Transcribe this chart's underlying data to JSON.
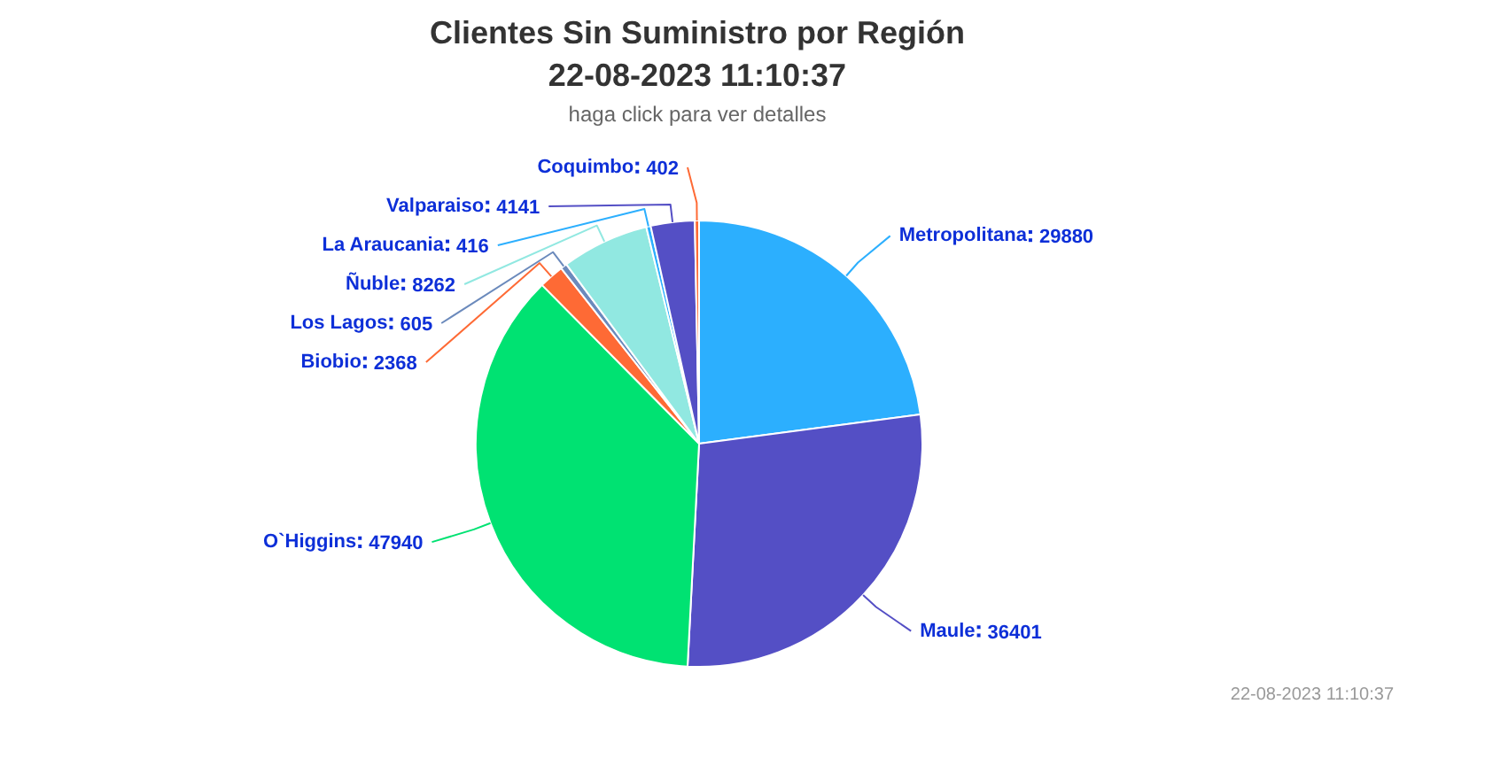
{
  "chart_data": {
    "type": "pie",
    "title": "Clientes Sin Suministro por Región\n22-08-2023 11:10:37",
    "subtitle": "haga click para ver detalles",
    "categories": [
      "Metropolitana",
      "Maule",
      "O`Higgins",
      "Biobio",
      "Los Lagos",
      "Ñuble",
      "La Araucania",
      "Valparaiso",
      "Coquimbo"
    ],
    "values": [
      29880,
      36401,
      47940,
      2368,
      605,
      8262,
      416,
      4141,
      402
    ],
    "colors": [
      "#2caffe",
      "#544fc5",
      "#00e272",
      "#fe6a35",
      "#6b8abc",
      "#91e8e1",
      "#2caffe",
      "#544fc5",
      "#fe6a35"
    ],
    "data_labels": true,
    "annotations": [
      "22-08-2023 11:10:37"
    ]
  }
}
